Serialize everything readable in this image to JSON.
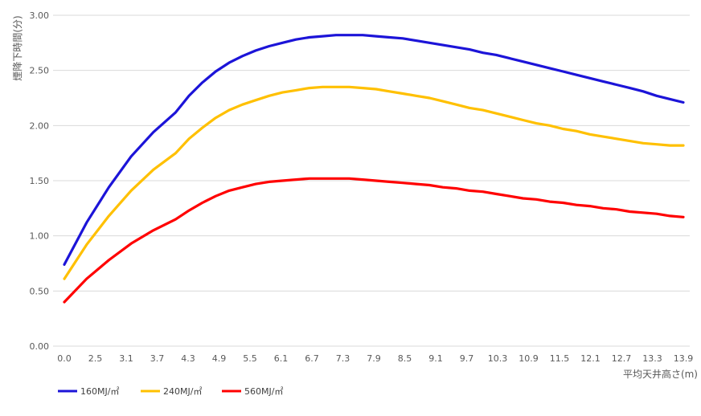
{
  "chart_data": {
    "type": "line",
    "xlabel": "平均天井高さ(m)",
    "ylabel": "煙降下時間(分)",
    "x_tick_labels": [
      "0.0",
      "2.5",
      "3.1",
      "3.7",
      "4.3",
      "4.9",
      "5.5",
      "6.1",
      "6.7",
      "7.3",
      "7.9",
      "8.5",
      "9.1",
      "9.7",
      "10.3",
      "10.9",
      "11.5",
      "12.1",
      "12.7",
      "13.3",
      "13.9"
    ],
    "x": [
      0.0,
      0.5,
      1.0,
      1.5,
      2.0,
      2.5,
      2.8,
      3.1,
      3.4,
      3.7,
      4.0,
      4.3,
      4.6,
      4.9,
      5.2,
      5.5,
      5.8,
      6.1,
      6.4,
      6.7,
      7.0,
      7.3,
      7.6,
      7.9,
      8.2,
      8.5,
      8.8,
      9.1,
      9.4,
      9.7,
      10.0,
      10.3,
      10.6,
      10.9,
      11.2,
      11.5,
      11.8,
      12.1,
      12.4,
      12.7,
      13.0,
      13.3,
      13.6,
      13.9
    ],
    "y_tick_labels": [
      "0.00",
      "0.50",
      "1.00",
      "1.50",
      "2.00",
      "2.50",
      "3.00"
    ],
    "ylim": [
      0,
      3
    ],
    "grid": true,
    "legend_position": "bottom-left",
    "series": [
      {
        "name": "160MJ/㎡",
        "color": "#1c14d8",
        "values": [
          0.74,
          1.12,
          1.44,
          1.72,
          1.94,
          2.12,
          2.27,
          2.39,
          2.49,
          2.57,
          2.63,
          2.68,
          2.72,
          2.75,
          2.78,
          2.8,
          2.81,
          2.82,
          2.82,
          2.82,
          2.81,
          2.8,
          2.79,
          2.77,
          2.75,
          2.73,
          2.71,
          2.69,
          2.66,
          2.64,
          2.61,
          2.58,
          2.55,
          2.52,
          2.49,
          2.46,
          2.43,
          2.4,
          2.37,
          2.34,
          2.31,
          2.27,
          2.24,
          2.21
        ]
      },
      {
        "name": "240MJ/㎡",
        "color": "#ffc000",
        "values": [
          0.61,
          0.92,
          1.18,
          1.41,
          1.6,
          1.75,
          1.88,
          1.98,
          2.07,
          2.14,
          2.19,
          2.23,
          2.27,
          2.3,
          2.32,
          2.34,
          2.35,
          2.35,
          2.35,
          2.34,
          2.33,
          2.31,
          2.29,
          2.27,
          2.25,
          2.22,
          2.19,
          2.16,
          2.14,
          2.11,
          2.08,
          2.05,
          2.02,
          2.0,
          1.97,
          1.95,
          1.92,
          1.9,
          1.88,
          1.86,
          1.84,
          1.83,
          1.82,
          1.82
        ]
      },
      {
        "name": "560MJ/㎡",
        "color": "#ff0000",
        "values": [
          0.4,
          0.61,
          0.78,
          0.93,
          1.05,
          1.15,
          1.23,
          1.3,
          1.36,
          1.41,
          1.44,
          1.47,
          1.49,
          1.5,
          1.51,
          1.52,
          1.52,
          1.52,
          1.52,
          1.51,
          1.5,
          1.49,
          1.48,
          1.47,
          1.46,
          1.44,
          1.43,
          1.41,
          1.4,
          1.38,
          1.36,
          1.34,
          1.33,
          1.31,
          1.3,
          1.28,
          1.27,
          1.25,
          1.24,
          1.22,
          1.21,
          1.2,
          1.18,
          1.17
        ]
      }
    ]
  }
}
